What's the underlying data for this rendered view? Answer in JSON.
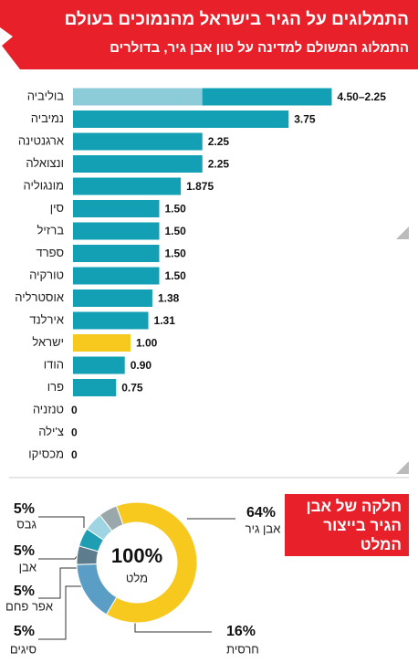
{
  "chart_data": [
    {
      "type": "bar",
      "title": "התמלוגים על הגיר בישראל מהנמוכים בעולם",
      "subtitle": "התמלוג המשולם למדינה על טון אבן גיר, בדולרים",
      "categories": [
        "בוליביה",
        "נמיביה",
        "ארגנטינה",
        "ונצואלה",
        "מונגוליה",
        "סין",
        "ברזיל",
        "ספרד",
        "טורקיה",
        "אוסטרליה",
        "אירלנד",
        "ישראל",
        "הודו",
        "פרו",
        "טנזניה",
        "צ'ילה",
        "מכסיקו"
      ],
      "values": [
        4.5,
        3.75,
        2.25,
        2.25,
        1.875,
        1.5,
        1.5,
        1.5,
        1.5,
        1.38,
        1.31,
        1.0,
        0.9,
        0.75,
        0,
        0,
        0
      ],
      "low_values": [
        2.25,
        null,
        null,
        null,
        null,
        null,
        null,
        null,
        null,
        null,
        null,
        null,
        null,
        null,
        null,
        null,
        null
      ],
      "value_labels": [
        "4.50–2.25",
        "3.75",
        "2.25",
        "2.25",
        "1.875",
        "1.50",
        "1.50",
        "1.50",
        "1.50",
        "1.38",
        "1.31",
        "1.00",
        "0.90",
        "0.75",
        "0",
        "0",
        "0"
      ],
      "colors": [
        "#13a0b5",
        "#13a0b5",
        "#13a0b5",
        "#13a0b5",
        "#13a0b5",
        "#13a0b5",
        "#13a0b5",
        "#13a0b5",
        "#13a0b5",
        "#13a0b5",
        "#13a0b5",
        "#f7c81e",
        "#13a0b5",
        "#13a0b5",
        "#13a0b5",
        "#13a0b5",
        "#13a0b5"
      ],
      "low_color": "#8ccbd8",
      "xlim": [
        0,
        4.5
      ]
    },
    {
      "type": "donut",
      "title": "חלקה של אבן הגיר בייצור המלט",
      "center_text": "100%",
      "center_label": "מלט",
      "categories": [
        "אבן גיר",
        "חרסית",
        "סיגים",
        "אפר פחם",
        "אבן",
        "גבס"
      ],
      "values": [
        64,
        16,
        5,
        5,
        5,
        5
      ],
      "value_labels": [
        "64%",
        "16%",
        "5%",
        "5%",
        "5%",
        "5%"
      ],
      "colors": [
        "#f7c81e",
        "#5b9ec5",
        "#5d7d8e",
        "#1e9db3",
        "#9fd5e3",
        "#9aa8ac"
      ]
    }
  ]
}
